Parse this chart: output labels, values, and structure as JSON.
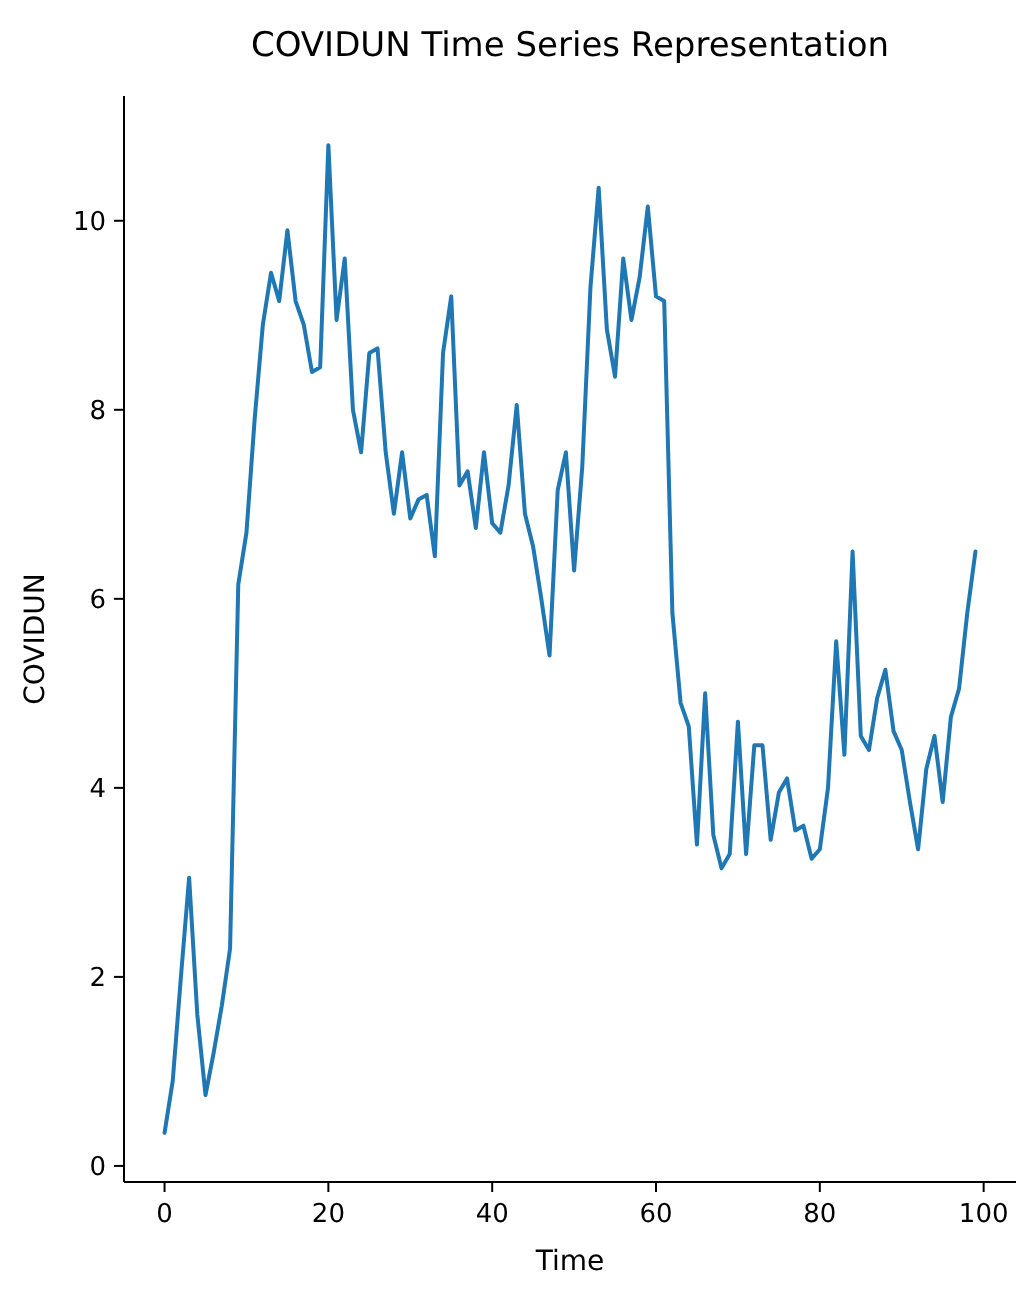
{
  "chart_data": {
    "type": "line",
    "title": "COVIDUN Time Series Representation",
    "xlabel": "Time",
    "ylabel": "COVIDUN",
    "x": [
      0,
      1,
      2,
      3,
      4,
      5,
      6,
      7,
      8,
      9,
      10,
      11,
      12,
      13,
      14,
      15,
      16,
      17,
      18,
      19,
      20,
      21,
      22,
      23,
      24,
      25,
      26,
      27,
      28,
      29,
      30,
      31,
      32,
      33,
      34,
      35,
      36,
      37,
      38,
      39,
      40,
      41,
      42,
      43,
      44,
      45,
      46,
      47,
      48,
      49,
      50,
      51,
      52,
      53,
      54,
      55,
      56,
      57,
      58,
      59,
      60,
      61,
      62,
      63,
      64,
      65,
      66,
      67,
      68,
      69,
      70,
      71,
      72,
      73,
      74,
      75,
      76,
      77,
      78,
      79,
      80,
      81,
      82,
      83,
      84,
      85,
      86,
      87,
      88,
      89,
      90,
      91,
      92,
      93,
      94,
      95,
      96,
      97,
      98,
      99
    ],
    "series": [
      {
        "color": "#1f77b4",
        "values": [
          0.35,
          0.9,
          2.0,
          3.05,
          1.6,
          0.75,
          1.2,
          1.7,
          2.3,
          6.15,
          6.7,
          7.9,
          8.9,
          9.45,
          9.15,
          9.9,
          9.15,
          8.9,
          8.4,
          8.45,
          10.8,
          8.95,
          9.6,
          8.0,
          7.55,
          8.6,
          8.65,
          7.55,
          6.9,
          7.55,
          6.85,
          7.05,
          7.1,
          6.45,
          8.6,
          9.2,
          7.2,
          7.35,
          6.75,
          7.55,
          6.8,
          6.7,
          7.2,
          8.05,
          6.9,
          6.55,
          6.0,
          5.4,
          7.15,
          7.55,
          6.3,
          7.4,
          9.3,
          10.35,
          8.85,
          8.35,
          9.6,
          8.95,
          9.4,
          10.15,
          9.2,
          9.15,
          5.85,
          4.9,
          4.65,
          3.4,
          5.0,
          3.5,
          3.15,
          3.3,
          4.7,
          3.3,
          4.45,
          4.45,
          3.45,
          3.95,
          4.1,
          3.55,
          3.6,
          3.25,
          3.35,
          4.0,
          5.55,
          4.35,
          6.5,
          4.55,
          4.4,
          4.95,
          5.25,
          4.6,
          4.4,
          3.85,
          3.35,
          4.2,
          4.55,
          3.85,
          4.75,
          5.05,
          5.85,
          6.5
        ]
      }
    ],
    "xlim": [
      -4.95,
      103.95
    ],
    "ylim": [
      -0.17,
      11.32
    ],
    "xticks": [
      0,
      20,
      40,
      60,
      80,
      100
    ],
    "yticks": [
      0,
      2,
      4,
      6,
      8,
      10
    ],
    "grid": false
  }
}
